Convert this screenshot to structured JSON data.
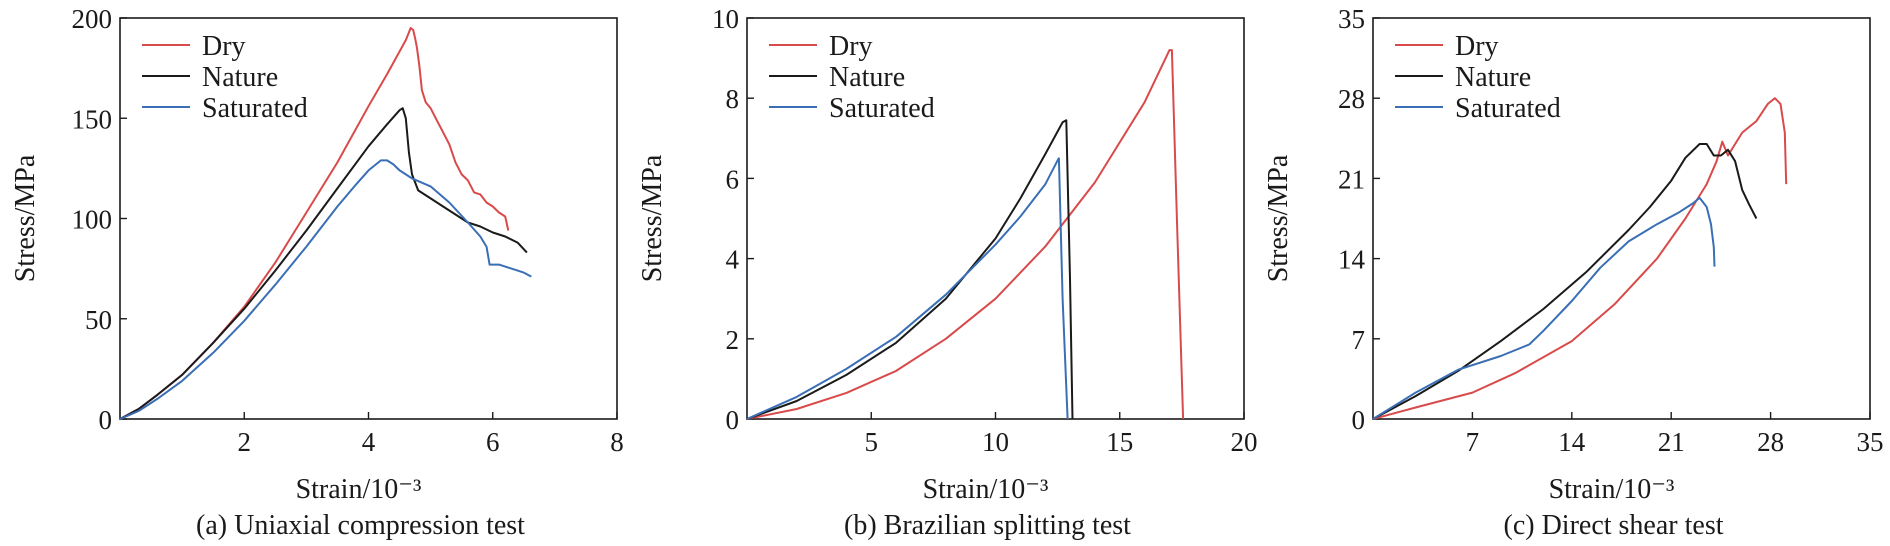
{
  "colors": {
    "dry": "#d94a4a",
    "nature": "#1a1a1a",
    "saturated": "#3a6fb5",
    "axis": "#1a1a1a"
  },
  "chart_data": [
    {
      "type": "line",
      "caption": "(a) Uniaxial compression test",
      "xlabel": "Strain/10⁻³",
      "ylabel": "Stress/MPa",
      "xlim": [
        0,
        8
      ],
      "ylim": [
        0,
        200
      ],
      "xticks": [
        2,
        4,
        6,
        8
      ],
      "xtick_labels": [
        "2",
        "4",
        "6",
        "8"
      ],
      "yticks": [
        0,
        50,
        100,
        150,
        200
      ],
      "ytick_labels": [
        "0",
        "50",
        "100",
        "150",
        "200"
      ],
      "legend": [
        "Dry",
        "Nature",
        "Saturated"
      ],
      "series": [
        {
          "name": "Dry",
          "color_key": "dry",
          "x": [
            0,
            0.3,
            0.6,
            1.0,
            1.5,
            2.0,
            2.5,
            3.0,
            3.5,
            4.0,
            4.3,
            4.6,
            4.68,
            4.72,
            4.75,
            4.78,
            4.82,
            4.86,
            4.92,
            5.0,
            5.1,
            5.2,
            5.3,
            5.4,
            5.5,
            5.6,
            5.7,
            5.8,
            5.9,
            6.0,
            6.1,
            6.2,
            6.25
          ],
          "y": [
            0,
            5,
            12,
            22,
            38,
            56,
            78,
            103,
            128,
            156,
            172,
            189,
            195,
            194,
            190,
            185,
            176,
            164,
            158,
            155,
            149,
            143,
            137,
            128,
            122,
            119,
            113,
            112,
            108,
            106,
            103,
            101,
            94
          ]
        },
        {
          "name": "Nature",
          "color_key": "nature",
          "x": [
            0,
            0.3,
            0.6,
            1.0,
            1.5,
            2.0,
            2.5,
            3.0,
            3.5,
            4.0,
            4.3,
            4.5,
            4.55,
            4.6,
            4.65,
            4.7,
            4.8,
            5.0,
            5.2,
            5.4,
            5.6,
            5.8,
            6.0,
            6.2,
            6.4,
            6.55
          ],
          "y": [
            0,
            5,
            12,
            22,
            38,
            55,
            74,
            94,
            115,
            136,
            147,
            154,
            155,
            150,
            133,
            122,
            114,
            110,
            106,
            102,
            98,
            96,
            93,
            91,
            88,
            83
          ]
        },
        {
          "name": "Saturated",
          "color_key": "saturated",
          "x": [
            0,
            0.3,
            0.6,
            1.0,
            1.5,
            2.0,
            2.5,
            3.0,
            3.5,
            3.8,
            4.0,
            4.2,
            4.3,
            4.4,
            4.5,
            4.7,
            5.0,
            5.3,
            5.6,
            5.8,
            5.9,
            5.95,
            6.1,
            6.3,
            6.5,
            6.62
          ],
          "y": [
            0,
            4,
            10,
            19,
            33,
            49,
            67,
            86,
            106,
            117,
            124,
            129,
            129,
            127,
            124,
            120,
            116,
            108,
            98,
            91,
            86,
            77,
            77,
            75,
            73,
            71
          ]
        }
      ]
    },
    {
      "type": "line",
      "caption": "(b) Brazilian splitting test",
      "xlabel": "Strain/10⁻³",
      "ylabel": "Stress/MPa",
      "xlim": [
        0,
        20
      ],
      "ylim": [
        0,
        10
      ],
      "xticks": [
        5,
        10,
        15,
        20
      ],
      "xtick_labels": [
        "5",
        "10",
        "15",
        "20"
      ],
      "yticks": [
        0,
        2,
        4,
        6,
        8,
        10
      ],
      "ytick_labels": [
        "0",
        "2",
        "4",
        "6",
        "8",
        "10"
      ],
      "legend": [
        "Dry",
        "Nature",
        "Saturated"
      ],
      "series": [
        {
          "name": "Dry",
          "color_key": "dry",
          "x": [
            0,
            2,
            4,
            6,
            8,
            10,
            12,
            14,
            16,
            17.0,
            17.1,
            17.3,
            17.55
          ],
          "y": [
            0,
            0.25,
            0.65,
            1.2,
            2.0,
            3.0,
            4.3,
            5.9,
            7.9,
            9.2,
            9.2,
            5.0,
            0
          ]
        },
        {
          "name": "Nature",
          "color_key": "nature",
          "x": [
            0,
            2,
            4,
            6,
            8,
            10,
            11,
            12,
            12.7,
            12.85,
            13.0,
            13.1
          ],
          "y": [
            0,
            0.45,
            1.1,
            1.9,
            3.0,
            4.5,
            5.5,
            6.6,
            7.4,
            7.45,
            3.5,
            0
          ]
        },
        {
          "name": "Saturated",
          "color_key": "saturated",
          "x": [
            0,
            2,
            4,
            6,
            8,
            10,
            11,
            12,
            12.5,
            12.55,
            12.7,
            12.9
          ],
          "y": [
            0,
            0.55,
            1.25,
            2.05,
            3.1,
            4.35,
            5.05,
            5.85,
            6.45,
            6.5,
            3.0,
            0
          ]
        }
      ]
    },
    {
      "type": "line",
      "caption": "(c) Direct shear test",
      "xlabel": "Strain/10⁻³",
      "ylabel": "Stress/MPa",
      "xlim": [
        0,
        35
      ],
      "ylim": [
        0,
        35
      ],
      "xticks": [
        7,
        14,
        21,
        28,
        35
      ],
      "xtick_labels": [
        "7",
        "14",
        "21",
        "28",
        "35"
      ],
      "yticks": [
        0,
        7,
        14,
        21,
        28,
        35
      ],
      "ytick_labels": [
        "0",
        "7",
        "14",
        "21",
        "28",
        "35"
      ],
      "legend": [
        "Dry",
        "Nature",
        "Saturated"
      ],
      "series": [
        {
          "name": "Dry",
          "color_key": "dry",
          "x": [
            0,
            3,
            7,
            10,
            14,
            17,
            20,
            22,
            23.5,
            24.2,
            24.6,
            25.0,
            26,
            27,
            27.8,
            28.3,
            28.7,
            29.0,
            29.1
          ],
          "y": [
            0,
            1.0,
            2.3,
            4.0,
            6.8,
            10.0,
            14.0,
            17.5,
            20.5,
            22.5,
            24.2,
            23.0,
            25.0,
            26.0,
            27.5,
            28.0,
            27.5,
            25.0,
            20.5
          ]
        },
        {
          "name": "Nature",
          "color_key": "nature",
          "x": [
            0,
            3,
            6,
            9,
            12,
            15,
            18,
            19.5,
            21,
            22,
            23,
            23.5,
            24,
            24.5,
            25,
            25.5,
            26,
            26.5,
            27
          ],
          "y": [
            0,
            2.0,
            4.2,
            6.8,
            9.6,
            12.8,
            16.5,
            18.5,
            20.8,
            22.8,
            24.0,
            24.0,
            23.0,
            23.0,
            23.5,
            22.5,
            20.0,
            18.7,
            17.5
          ]
        },
        {
          "name": "Saturated",
          "color_key": "saturated",
          "x": [
            0,
            3,
            6,
            9,
            11,
            12,
            14,
            16,
            18,
            20,
            21.5,
            22.5,
            23,
            23.5,
            23.8,
            24.0,
            24.05
          ],
          "y": [
            0,
            2.3,
            4.3,
            5.5,
            6.5,
            7.7,
            10.3,
            13.2,
            15.5,
            17.0,
            18.0,
            18.8,
            19.3,
            18.5,
            17.0,
            15.0,
            13.3
          ]
        }
      ]
    }
  ]
}
